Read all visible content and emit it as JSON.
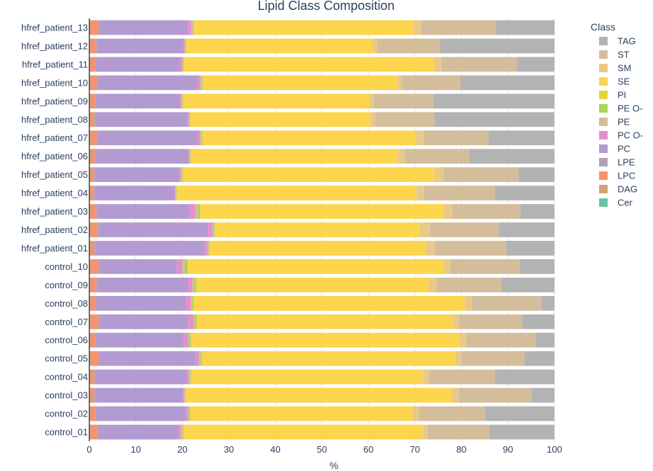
{
  "chart_data": {
    "type": "bar",
    "orientation": "horizontal",
    "stacked": true,
    "title": "Lipid Class Composition",
    "xlabel": "%",
    "ylabel": "",
    "xlim": [
      0,
      100
    ],
    "xticks": [
      0,
      10,
      20,
      30,
      40,
      50,
      60,
      70,
      80,
      90,
      100
    ],
    "legend_title": "Class",
    "legend_position": "right",
    "categories": [
      "hfref_patient_13",
      "hfref_patient_12",
      "hfref_patient_11",
      "hfref_patient_10",
      "hfref_patient_09",
      "hfref_patient_08",
      "hfref_patient_07",
      "hfref_patient_06",
      "hfref_patient_05",
      "hfref_patient_04",
      "hfref_patient_03",
      "hfref_patient_02",
      "hfref_patient_01",
      "control_10",
      "control_09",
      "control_08",
      "control_07",
      "control_06",
      "control_05",
      "control_04",
      "control_03",
      "control_02",
      "control_01"
    ],
    "series": [
      {
        "name": "Cer",
        "color": "#66c2a5",
        "values": [
          0,
          0,
          0,
          0,
          0,
          0,
          0,
          0,
          0,
          0,
          0,
          0,
          0,
          0,
          0,
          0,
          0,
          0,
          0,
          0,
          0,
          0,
          0
        ]
      },
      {
        "name": "DAG",
        "color": "#d4a373",
        "values": [
          0.3,
          0.3,
          0.3,
          0.3,
          0.3,
          0.3,
          0.3,
          0.3,
          0.3,
          0.3,
          0.3,
          0.3,
          0.3,
          0.3,
          0.3,
          0.3,
          0.3,
          0.3,
          0.3,
          0.3,
          0.3,
          0.3,
          0.3
        ]
      },
      {
        "name": "LPC",
        "color": "#f4936e",
        "values": [
          1.7,
          1.2,
          1.0,
          1.3,
          1.0,
          0.8,
          1.3,
          0.9,
          0.7,
          0.6,
          1.2,
          1.5,
          0.8,
          1.7,
          1.2,
          1.0,
          1.7,
          1.0,
          1.7,
          0.8,
          0.8,
          1.0,
          1.4
        ]
      },
      {
        "name": "LPE",
        "color": "#b3a0b8",
        "values": [
          0.3,
          0.2,
          0.2,
          0.2,
          0.2,
          0.2,
          0.2,
          0.2,
          0.2,
          0.2,
          0.2,
          0.2,
          0.2,
          0.3,
          0.2,
          0.2,
          0.3,
          0.2,
          0.3,
          0.2,
          0.2,
          0.2,
          0.2
        ]
      },
      {
        "name": "PC",
        "color": "#b39ad0",
        "values": [
          19.0,
          18.5,
          18.0,
          21.5,
          18.0,
          19.8,
          21.5,
          19.8,
          18.0,
          17.2,
          19.8,
          23.5,
          23.5,
          16.5,
          19.5,
          19.3,
          19.0,
          18.8,
          20.5,
          19.6,
          18.8,
          19.2,
          17.2
        ]
      },
      {
        "name": "PC O-",
        "color": "#e48fcc",
        "values": [
          0.6,
          0.3,
          0.5,
          0.6,
          0.3,
          0.3,
          0.5,
          0.3,
          0.5,
          0.2,
          1.3,
          1.0,
          0.6,
          1.2,
          1.0,
          1.0,
          1.1,
          1.0,
          0.8,
          0.5,
          0.3,
          0.5,
          0.6
        ]
      },
      {
        "name": "PE",
        "color": "#d6bc97",
        "values": [
          0.5,
          0.2,
          0.2,
          0.3,
          0.2,
          0.2,
          0.3,
          0.2,
          0.3,
          0.2,
          0.6,
          0.3,
          0.3,
          0.5,
          0.3,
          0.3,
          0.3,
          0.3,
          0.3,
          0.3,
          0.2,
          0.3,
          0.3
        ]
      },
      {
        "name": "PE O-",
        "color": "#a6d854",
        "values": [
          0.1,
          0.1,
          0.1,
          0.2,
          0.1,
          0.1,
          0.2,
          0.1,
          0.1,
          0.1,
          0.4,
          0.2,
          0.1,
          0.6,
          0.5,
          0.3,
          0.4,
          0.3,
          0.3,
          0.2,
          0.1,
          0.2,
          0.2
        ]
      },
      {
        "name": "PI",
        "color": "#e5d435",
        "values": [
          0.1,
          0.1,
          0.1,
          0.1,
          0.1,
          0.1,
          0.1,
          0.1,
          0.1,
          0.1,
          0.1,
          0.1,
          0.1,
          0.1,
          0.1,
          0.1,
          0.1,
          0.1,
          0.1,
          0.1,
          0.1,
          0.1,
          0.1
        ]
      },
      {
        "name": "SE",
        "color": "#fcd54d",
        "values": [
          47.1,
          40.0,
          53.8,
          41.8,
          40.0,
          38.6,
          45.7,
          44.4,
          54.0,
          51.4,
          52.3,
          43.9,
          46.4,
          54.9,
          49.9,
          58.2,
          54.9,
          57.6,
          54.5,
          49.7,
          57.0,
          47.7,
          51.4
        ]
      },
      {
        "name": "SM",
        "color": "#e9c98a",
        "values": [
          1.6,
          1.0,
          1.5,
          1.0,
          0.9,
          1.1,
          1.8,
          1.5,
          1.9,
          1.6,
          1.8,
          2.2,
          2.0,
          1.5,
          1.6,
          1.5,
          1.4,
          1.4,
          1.2,
          1.4,
          1.5,
          1.3,
          1.0
        ]
      },
      {
        "name": "ST",
        "color": "#d4bd9b",
        "values": [
          16.2,
          13.5,
          16.2,
          12.5,
          12.8,
          12.7,
          13.9,
          13.9,
          16.2,
          15.3,
          14.7,
          14.8,
          15.4,
          15.0,
          14.0,
          15.0,
          13.6,
          15.0,
          13.6,
          14.1,
          15.8,
          14.3,
          13.3
        ]
      },
      {
        "name": "TAG",
        "color": "#b3b3b3",
        "values": [
          12.5,
          25.6,
          8.1,
          21.2,
          26.3,
          25.8,
          15.0,
          18.8,
          7.7,
          13.0,
          7.3,
          12.4,
          10.8,
          7.8,
          11.8,
          3.6,
          7.9,
          4.6,
          7.1,
          13.6,
          5.2,
          15.9,
          14.5
        ]
      }
    ]
  }
}
